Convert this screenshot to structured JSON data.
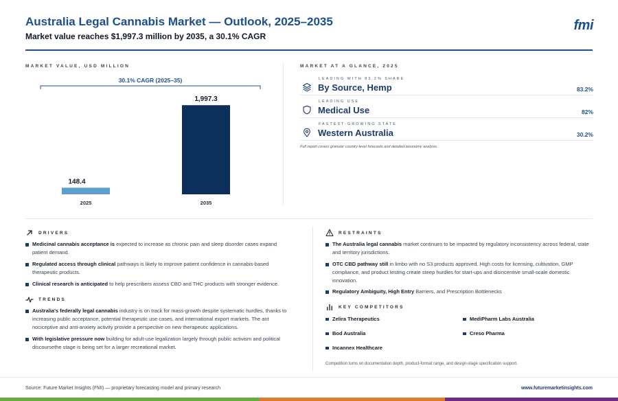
{
  "header": {
    "title": "Australia Legal Cannabis Market — Outlook, 2025–2035",
    "subtitle": "Market value reaches $1,997.3 million by 2035, a 30.1% CAGR",
    "logo": "fmi"
  },
  "market_value": {
    "section_label": "MARKET VALUE, USD MILLION"
  },
  "chart_data": {
    "type": "bar",
    "categories": [
      "2025",
      "2035"
    ],
    "values": [
      148.4,
      1997.3
    ],
    "value_labels": [
      "148.4",
      "1,997.3"
    ],
    "annotation": "30.1% CAGR (2025–35)",
    "ylim": [
      0,
      2000
    ],
    "grid": false,
    "colors": [
      "#5a9fcf",
      "#0d2f5c"
    ]
  },
  "glance": {
    "section_label": "MARKET AT A GLANCE, 2025",
    "items": [
      {
        "kicker": "LEADING WITH 83.2% SHARE",
        "name": "By Source, Hemp",
        "value": "83.2%",
        "icon": "layers-icon"
      },
      {
        "kicker": "LEADING USE",
        "name": "Medical Use",
        "value": "82%",
        "icon": "shield-icon"
      },
      {
        "kicker": "FASTEST-GROWING STATE",
        "name": "Western Australia",
        "value": "30.2%",
        "icon": "map-pin-icon"
      }
    ],
    "note": "Full report covers granular country-level forecasts and detailed taxonomy analysis."
  },
  "drivers": {
    "heading": "DRIVERS",
    "items": [
      {
        "bold": "Medicinal cannabis acceptance is",
        "text": " expected to increase as chronic pain and sleep disorder cases expand patient demand."
      },
      {
        "bold": "Regulated access through clinical",
        "text": " pathways is likely to improve patient confidence in cannabis-based therapeutic products."
      },
      {
        "bold": "Clinical research is anticipated",
        "text": " to help prescribers assess CBD and THC products with stronger evidence."
      }
    ]
  },
  "trends": {
    "heading": "TRENDS",
    "items": [
      {
        "bold": "Australia's federally legal cannabis",
        "text": " industry is on track for mass-growth despite systematic hurdles, thanks to increasing public acceptance, potential therapeutic use cases, and international export markets. The ant nociceptive and anti-anxiety activity provide a perspective on new therapeutic applications."
      },
      {
        "bold": "With legislative pressure now",
        "text": " building for adult-use legalization largely through public activism and political discoursethe stage is being set for a larger recreational market."
      }
    ]
  },
  "restraints": {
    "heading": "RESTRAINTS",
    "items": [
      {
        "bold": "The Australia legal cannabis",
        "text": " market continues to be impacted by regulatory inconsistency across federal, state and territory jurisdictions."
      },
      {
        "bold": "OTC CBD pathway still",
        "text": " in limbo with no S3 products approved. High costs for licensing, cultivation, GMP compliance, and product testing create steep hurdles for start-ups and disincentive small-scale domestic innovation."
      },
      {
        "bold": "Regulatory Ambiguity, High Entry",
        "text": " Barriers, and Prescription Bottlenecks"
      }
    ]
  },
  "competitors": {
    "heading": "KEY COMPETITORS",
    "items": [
      "Zelira Therapeutics",
      "MediPharm Labs Australia",
      "Bod Australia",
      "Creso Pharma",
      "Incannex Healthcare"
    ],
    "note": "Competition turns on documentation depth, product-format range, and design-stage specification support."
  },
  "footer": {
    "source": "Source: Future Market Insights (FMI) — proprietary forecasting model and primary research",
    "url": "www.futuremarketinsights.com",
    "stripe_colors": [
      "#6aaa3f",
      "#e07b2c",
      "#6b2c82"
    ]
  }
}
